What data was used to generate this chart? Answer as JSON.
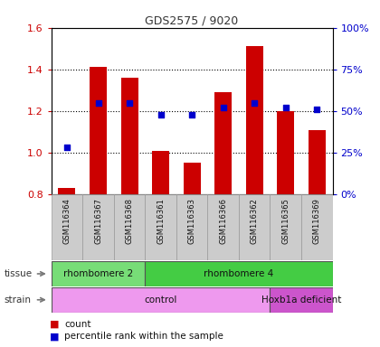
{
  "title": "GDS2575 / 9020",
  "samples": [
    "GSM116364",
    "GSM116367",
    "GSM116368",
    "GSM116361",
    "GSM116363",
    "GSM116366",
    "GSM116362",
    "GSM116365",
    "GSM116369"
  ],
  "red_values": [
    0.83,
    1.41,
    1.36,
    1.01,
    0.95,
    1.29,
    1.51,
    1.2,
    1.11
  ],
  "blue_values_pct": [
    28,
    55,
    55,
    48,
    48,
    52,
    55,
    52,
    51
  ],
  "ylim": [
    0.8,
    1.6
  ],
  "right_ylim": [
    0,
    100
  ],
  "y_ticks_left": [
    0.8,
    1.0,
    1.2,
    1.4,
    1.6
  ],
  "y_ticks_right": [
    0,
    25,
    50,
    75,
    100
  ],
  "y_ticks_right_labels": [
    "0%",
    "25%",
    "50%",
    "75%",
    "100%"
  ],
  "bar_color": "#cc0000",
  "dot_color": "#0000cc",
  "bar_bottom": 0.8,
  "tissue_groups": [
    {
      "label": "rhombomere 2",
      "start": 0,
      "end": 3,
      "color": "#77dd77"
    },
    {
      "label": "rhombomere 4",
      "start": 3,
      "end": 9,
      "color": "#44cc44"
    }
  ],
  "strain_groups": [
    {
      "label": "control",
      "start": 0,
      "end": 7,
      "color": "#ee99ee"
    },
    {
      "label": "Hoxb1a deficient",
      "start": 7,
      "end": 9,
      "color": "#cc55cc"
    }
  ],
  "tissue_label": "tissue",
  "strain_label": "strain",
  "legend_count": "count",
  "legend_pct": "percentile rank within the sample",
  "title_color": "#333333",
  "left_axis_color": "#cc0000",
  "right_axis_color": "#0000cc",
  "bg_color": "#ffffff",
  "grid_color": "#000000",
  "sample_label_bg": "#cccccc",
  "sample_label_edge": "#999999"
}
